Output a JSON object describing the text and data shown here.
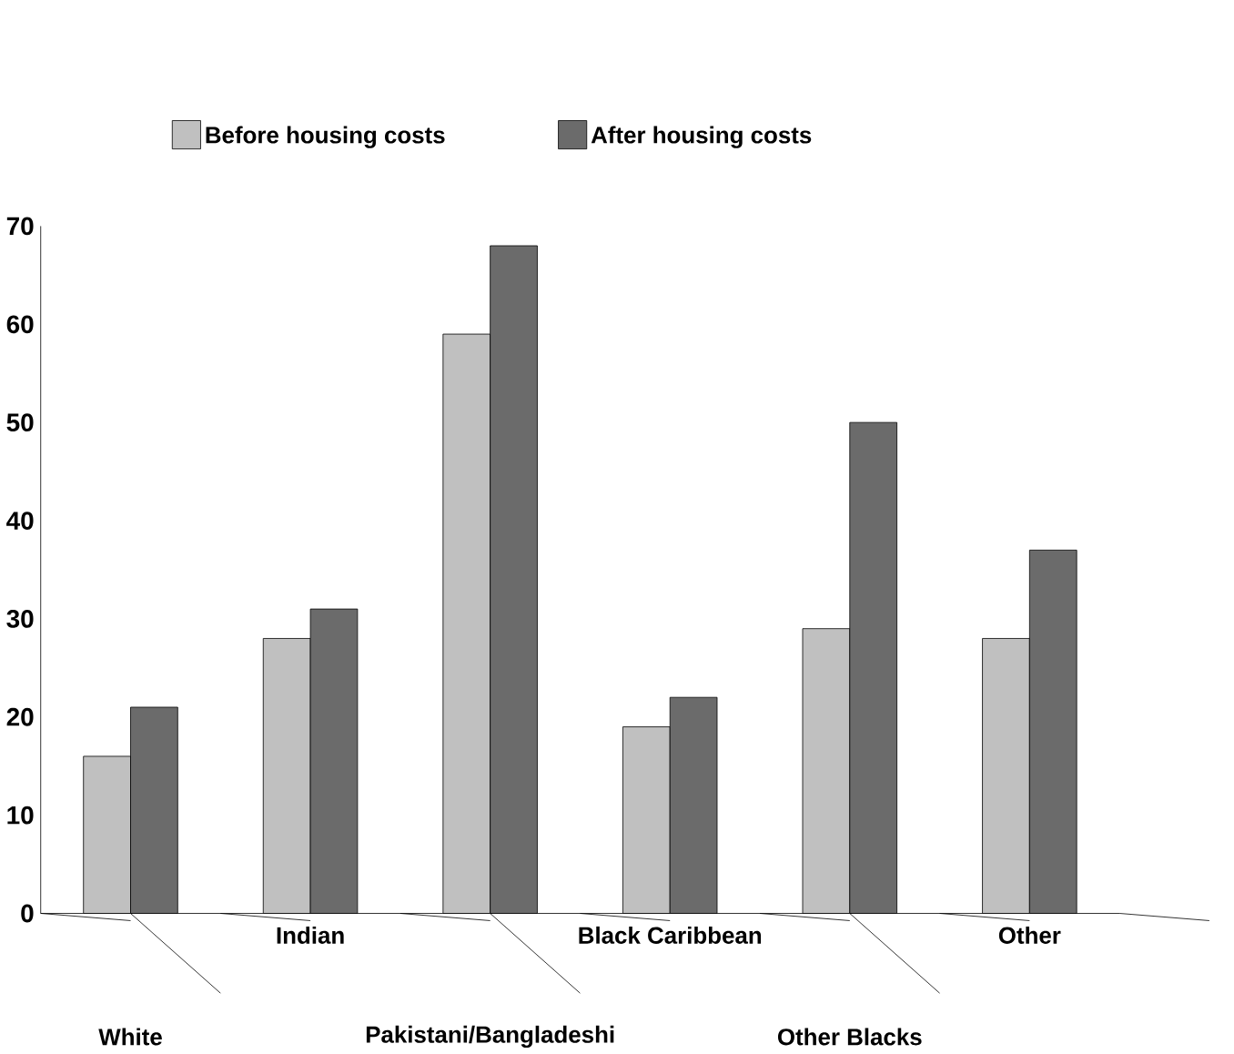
{
  "chart_data": {
    "type": "bar",
    "categories": [
      "White",
      "Indian",
      "Pakistani/Bangladeshi",
      "Black Caribbean",
      "Other Blacks",
      "Other"
    ],
    "series": [
      {
        "name": "Before housing costs",
        "color": "#c0c0c0",
        "values": [
          16,
          28,
          59,
          19,
          29,
          28
        ]
      },
      {
        "name": "After housing costs",
        "color": "#6b6b6b",
        "values": [
          21,
          31,
          68,
          22,
          50,
          37
        ]
      }
    ],
    "ylim": [
      0,
      70
    ],
    "yticks": [
      0,
      10,
      20,
      30,
      40,
      50,
      60,
      70
    ],
    "legend": "top",
    "grid": false
  }
}
